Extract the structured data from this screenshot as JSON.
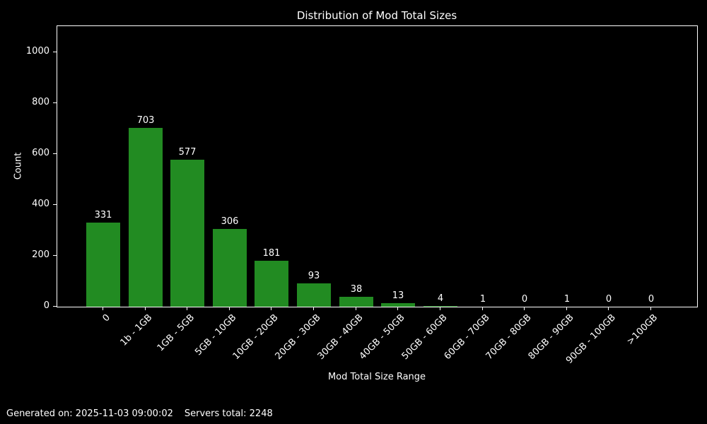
{
  "chart_data": {
    "type": "bar",
    "title": "Distribution of Mod Total Sizes",
    "xlabel": "Mod Total Size Range",
    "ylabel": "Count",
    "categories": [
      "0",
      "1b - 1GB",
      "1GB - 5GB",
      "5GB - 10GB",
      "10GB - 20GB",
      "20GB - 30GB",
      "30GB - 40GB",
      "40GB - 50GB",
      "50GB - 60GB",
      "60GB - 70GB",
      "70GB - 80GB",
      "80GB - 90GB",
      "90GB - 100GB",
      ">100GB"
    ],
    "values": [
      331,
      703,
      577,
      306,
      181,
      93,
      38,
      13,
      4,
      1,
      0,
      1,
      0,
      0
    ],
    "yticks": [
      0,
      200,
      400,
      600,
      800,
      1000
    ],
    "ylim": [
      0,
      1100
    ],
    "grid": false,
    "legend": "none",
    "bar_color": "#228B22",
    "background_color": "#000000",
    "text_color": "#ffffff"
  },
  "footer": {
    "generated_on": "Generated on: 2025-11-03 09:00:02",
    "servers_total": "Servers total: 2248"
  }
}
